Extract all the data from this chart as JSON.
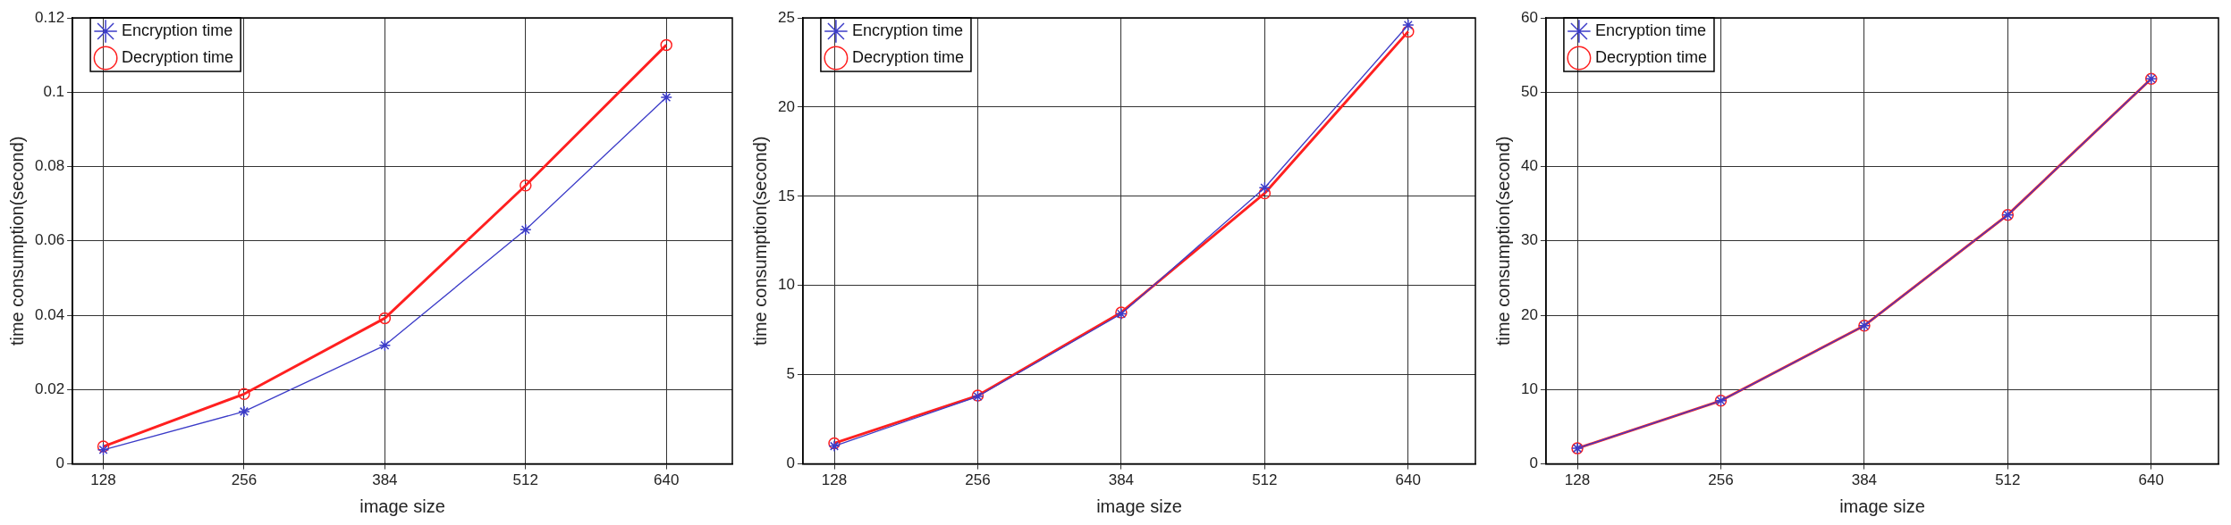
{
  "chart_data": [
    {
      "type": "line",
      "xlabel": "image size",
      "ylabel": "time consumption(second)",
      "x": [
        128,
        256,
        384,
        512,
        640
      ],
      "xlim": [
        100,
        700
      ],
      "xticks": [
        128,
        256,
        384,
        512,
        640
      ],
      "ylim": [
        0,
        0.12
      ],
      "yticks": [
        0,
        0.02,
        0.04,
        0.06,
        0.08,
        0.1,
        0.12
      ],
      "grid": true,
      "legend": "top left",
      "line_style": "solid",
      "series": [
        {
          "name": "Encryption time",
          "color": "#3c3cc8",
          "marker": "cross",
          "values": [
            0.0038,
            0.0141,
            0.0319,
            0.063,
            0.0986
          ]
        },
        {
          "name": "Decryption time",
          "color": "#ff2020",
          "marker": "circle",
          "values": [
            0.0047,
            0.0188,
            0.0392,
            0.0749,
            0.1127
          ]
        }
      ]
    },
    {
      "type": "line",
      "xlabel": "image size",
      "ylabel": "time consumption(second)",
      "x": [
        128,
        256,
        384,
        512,
        640
      ],
      "xlim": [
        100,
        700
      ],
      "xticks": [
        128,
        256,
        384,
        512,
        640
      ],
      "ylim": [
        0,
        25
      ],
      "yticks": [
        0,
        5,
        10,
        15,
        20,
        25
      ],
      "grid": true,
      "legend": "top left",
      "line_style": "solid",
      "series": [
        {
          "name": "Encryption time",
          "color": "#3c3cc8",
          "marker": "cross",
          "values": [
            1.0,
            3.78,
            8.41,
            15.48,
            24.6
          ]
        },
        {
          "name": "Decryption time",
          "color": "#ff2020",
          "marker": "circle",
          "values": [
            1.16,
            3.83,
            8.49,
            15.17,
            24.23
          ]
        }
      ]
    },
    {
      "type": "line",
      "xlabel": "image size",
      "ylabel": "time consumption(second)",
      "x": [
        128,
        256,
        384,
        512,
        640
      ],
      "xlim": [
        100,
        700
      ],
      "xticks": [
        128,
        256,
        384,
        512,
        640
      ],
      "ylim": [
        0,
        60
      ],
      "yticks": [
        0,
        10,
        20,
        30,
        40,
        50,
        60
      ],
      "grid": true,
      "legend": "top left",
      "line_style": "solid",
      "series": [
        {
          "name": "Encryption time",
          "color": "#3c3cc8",
          "marker": "cross",
          "values": [
            2.1,
            8.5,
            18.6,
            33.5,
            51.8
          ]
        },
        {
          "name": "Decryption time",
          "color": "#ff2020",
          "marker": "circle",
          "values": [
            2.1,
            8.5,
            18.6,
            33.5,
            51.8
          ]
        }
      ]
    }
  ]
}
